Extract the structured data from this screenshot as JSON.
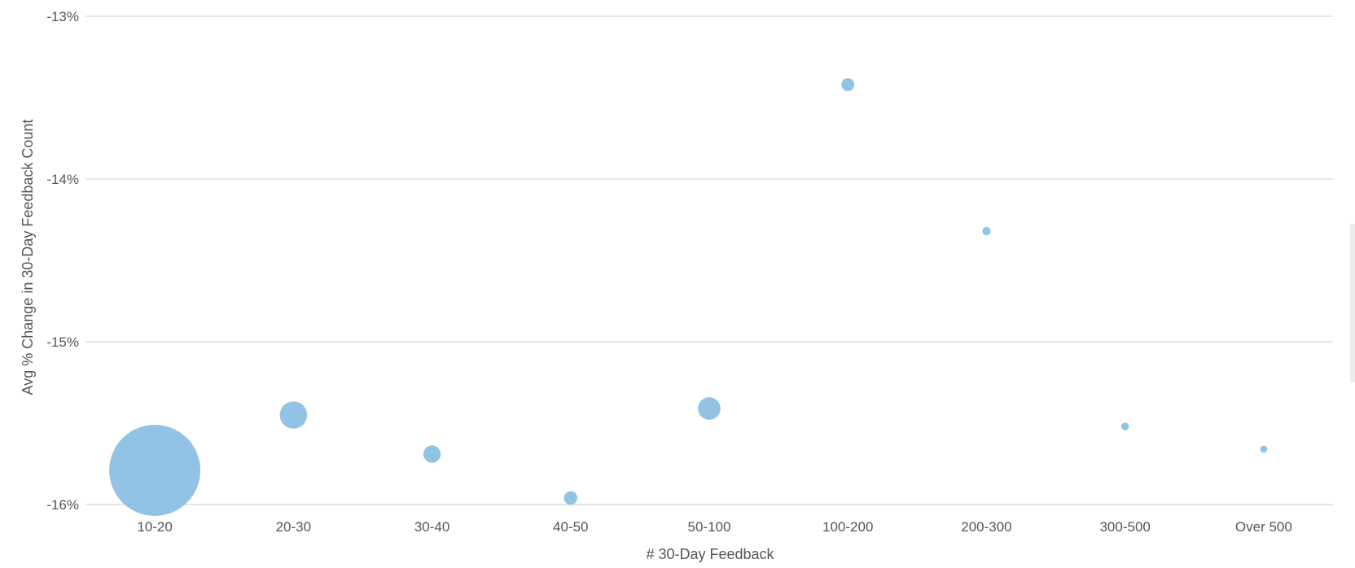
{
  "chart_data": {
    "type": "scatter",
    "subtype": "bubble",
    "title": "",
    "xlabel": "# 30-Day Feedback",
    "ylabel": "Avg % Change in 30-Day Feedback Count",
    "categories": [
      "10-20",
      "20-30",
      "30-40",
      "40-50",
      "50-100",
      "100-200",
      "200-300",
      "300-500",
      "Over 500"
    ],
    "y_ticks": [
      {
        "value": -13,
        "label": "-13%"
      },
      {
        "value": -14,
        "label": "-14%"
      },
      {
        "value": -15,
        "label": "-15%"
      },
      {
        "value": -16,
        "label": "-16%"
      }
    ],
    "ylim": [
      -16,
      -13
    ],
    "grid": true,
    "legend": "none",
    "bubble_color": "#92c3e5",
    "points": [
      {
        "category": "10-20",
        "y": -15.79,
        "size": 100
      },
      {
        "category": "20-30",
        "y": -15.45,
        "size": 9
      },
      {
        "category": "30-40",
        "y": -15.69,
        "size": 3.6
      },
      {
        "category": "40-50",
        "y": -15.96,
        "size": 2.2
      },
      {
        "category": "50-100",
        "y": -15.41,
        "size": 6.1
      },
      {
        "category": "100-200",
        "y": -13.42,
        "size": 2.0
      },
      {
        "category": "200-300",
        "y": -14.32,
        "size": 0.85
      },
      {
        "category": "300-500",
        "y": -15.52,
        "size": 0.7
      },
      {
        "category": "Over 500",
        "y": -15.66,
        "size": 0.62
      }
    ]
  }
}
